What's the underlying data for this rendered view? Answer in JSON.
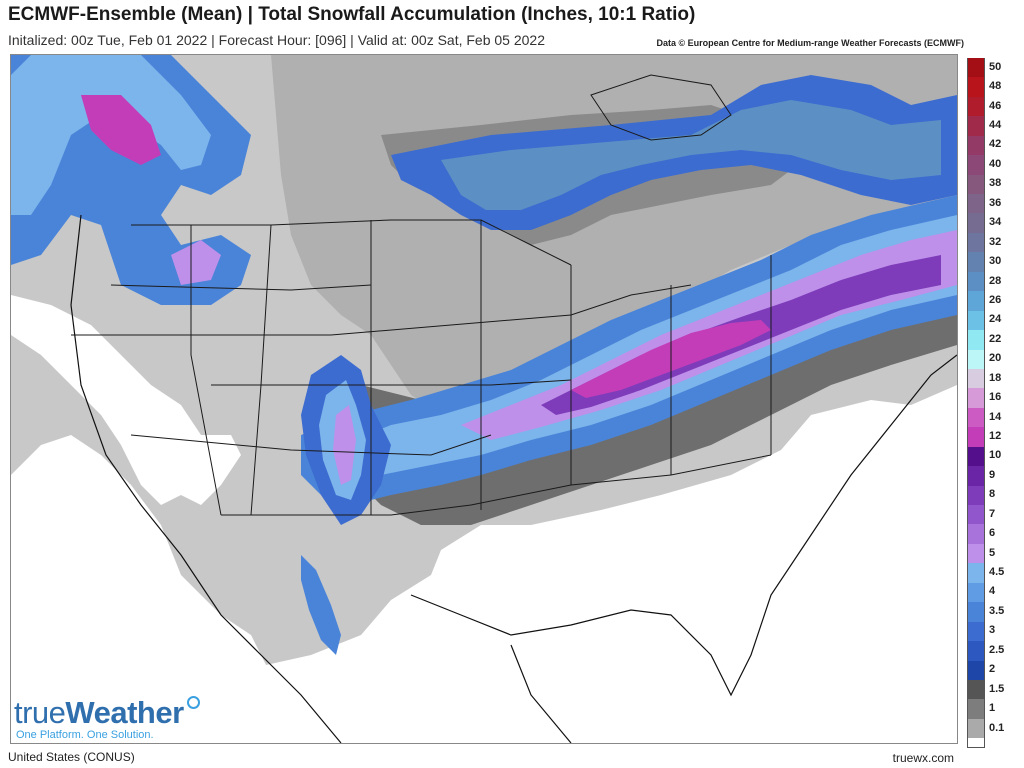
{
  "header": {
    "title": "ECMWF-Ensemble (Mean) | Total Snowfall Accumulation (Inches, 10:1 Ratio)",
    "subtitle": "Initalized: 00z Tue, Feb 01 2022 | Forecast Hour: [096] | Valid at: 00z Sat, Feb 05 2022",
    "credit": "Data © European Centre for Medium-range Weather Forecasts (ECMWF)"
  },
  "footer": {
    "region": "United States (CONUS)",
    "site": "truewx.com"
  },
  "logo": {
    "word_a": "true",
    "word_b": "Weather",
    "tagline": "One Platform. One Solution."
  },
  "legend": {
    "labels": [
      "50",
      "48",
      "46",
      "44",
      "42",
      "40",
      "38",
      "36",
      "34",
      "32",
      "30",
      "28",
      "26",
      "24",
      "22",
      "20",
      "18",
      "16",
      "14",
      "12",
      "10",
      "9",
      "8",
      "7",
      "6",
      "5",
      "4.5",
      "4",
      "3.5",
      "3",
      "2.5",
      "2",
      "1.5",
      "1",
      "0.1"
    ],
    "colors": [
      "#a40f16",
      "#b8141c",
      "#b01c2c",
      "#a02a4a",
      "#943a66",
      "#8c4876",
      "#86587e",
      "#7e6488",
      "#766c92",
      "#6e76a0",
      "#6482b0",
      "#5c90c4",
      "#5ea6d8",
      "#6cc2e6",
      "#8fe8f2",
      "#bcf6f6",
      "#d8cce0",
      "#d69ad8",
      "#cc5cc4",
      "#c33cb8",
      "#54108c",
      "#6a24a6",
      "#7e3cba",
      "#9256cc",
      "#a874dc",
      "#be90ea",
      "#7cb4ec",
      "#609ce4",
      "#4a84d8",
      "#3c6cd0",
      "#2c58c0",
      "#1e46a8",
      "#555555",
      "#7d7d7d",
      "#aaaaaa"
    ]
  },
  "map": {
    "area": "Continental United States",
    "fields": [
      "snow-accumulation-shading",
      "state-boundaries",
      "coastlines"
    ]
  }
}
